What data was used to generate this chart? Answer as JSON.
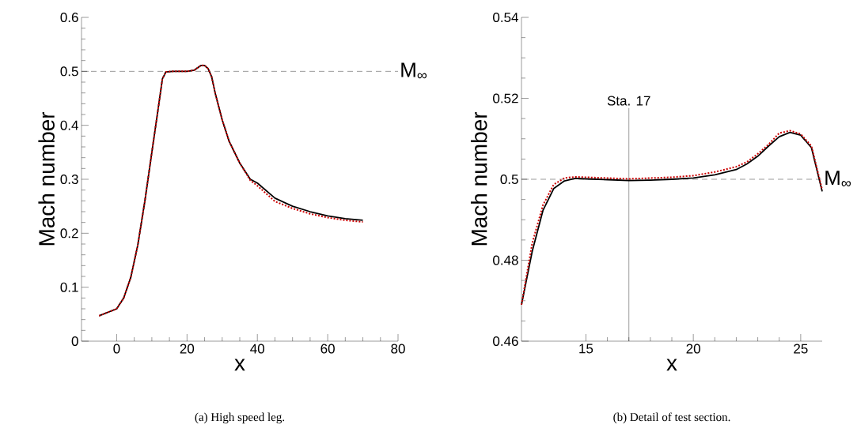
{
  "chart_data": [
    {
      "type": "line",
      "xlabel": "x",
      "ylabel": "Mach number",
      "xlim": [
        -10,
        80
      ],
      "ylim": [
        0,
        0.6
      ],
      "xticks": [
        0,
        20,
        40,
        60,
        80
      ],
      "yticks": [
        0,
        0.1,
        0.2,
        0.3,
        0.4,
        0.5,
        0.6
      ],
      "grid": false,
      "x": [
        -5,
        0,
        2,
        4,
        6,
        8,
        10,
        12,
        13,
        14,
        16,
        20,
        22,
        24,
        25,
        26,
        27,
        28,
        30,
        32,
        35,
        38,
        40,
        45,
        50,
        55,
        60,
        65,
        70
      ],
      "series": [
        {
          "color": "#000000",
          "line_style": "solid",
          "values": [
            0.047,
            0.06,
            0.08,
            0.118,
            0.178,
            0.259,
            0.35,
            0.44,
            0.486,
            0.499,
            0.5,
            0.5,
            0.502,
            0.511,
            0.511,
            0.505,
            0.49,
            0.46,
            0.41,
            0.37,
            0.33,
            0.3,
            0.293,
            0.265,
            0.25,
            0.24,
            0.232,
            0.227,
            0.224
          ]
        },
        {
          "color": "#cc0000",
          "line_style": "dashed",
          "values": [
            0.047,
            0.06,
            0.08,
            0.118,
            0.178,
            0.259,
            0.35,
            0.44,
            0.486,
            0.499,
            0.5,
            0.5,
            0.502,
            0.511,
            0.511,
            0.505,
            0.49,
            0.46,
            0.41,
            0.37,
            0.33,
            0.298,
            0.288,
            0.259,
            0.246,
            0.236,
            0.229,
            0.224,
            0.221
          ]
        }
      ],
      "ref_lines": [
        {
          "axis": "y",
          "value": 0.5,
          "label": "M$_{∞}$",
          "line_style": "dashed",
          "color": "#000000"
        }
      ],
      "annotations": [
        "(a) High speed leg."
      ]
    },
    {
      "type": "line",
      "xlabel": "x",
      "ylabel": "Mach number",
      "xlim": [
        12,
        26
      ],
      "ylim": [
        0.46,
        0.54
      ],
      "xticks": [
        15,
        20,
        25
      ],
      "yticks": [
        0.46,
        0.48,
        0.5,
        0.52,
        0.54
      ],
      "grid": false,
      "x": [
        12,
        12.5,
        13,
        13.5,
        14,
        14.5,
        15,
        16,
        17,
        18,
        19,
        20,
        21,
        22,
        22.5,
        23,
        23.5,
        24,
        24.5,
        25,
        25.5,
        26
      ],
      "series": [
        {
          "color": "#000000",
          "line_style": "solid",
          "values": [
            0.469,
            0.4822,
            0.4923,
            0.4977,
            0.4996,
            0.5002,
            0.5001,
            0.4999,
            0.4997,
            0.4998,
            0.5,
            0.5003,
            0.5011,
            0.5024,
            0.5038,
            0.5057,
            0.5082,
            0.5105,
            0.5116,
            0.5109,
            0.5078,
            0.497
          ]
        },
        {
          "color": "#cc0000",
          "line_style": "dashed",
          "values": [
            0.469,
            0.4842,
            0.4936,
            0.4987,
            0.5003,
            0.5006,
            0.5005,
            0.5003,
            0.5001,
            0.5003,
            0.5005,
            0.5009,
            0.5018,
            0.5031,
            0.5043,
            0.5063,
            0.5086,
            0.5114,
            0.512,
            0.5112,
            0.5082,
            0.4974
          ]
        }
      ],
      "ref_lines": [
        {
          "axis": "y",
          "value": 0.5,
          "label": "M$_{∞}$",
          "line_style": "dashed",
          "color": "#000000"
        },
        {
          "axis": "x",
          "value": 17,
          "label": "Sta. 17",
          "line_style": "solid",
          "color": "#000000"
        }
      ],
      "annotations": [
        "(b) Detail of test section."
      ]
    }
  ]
}
